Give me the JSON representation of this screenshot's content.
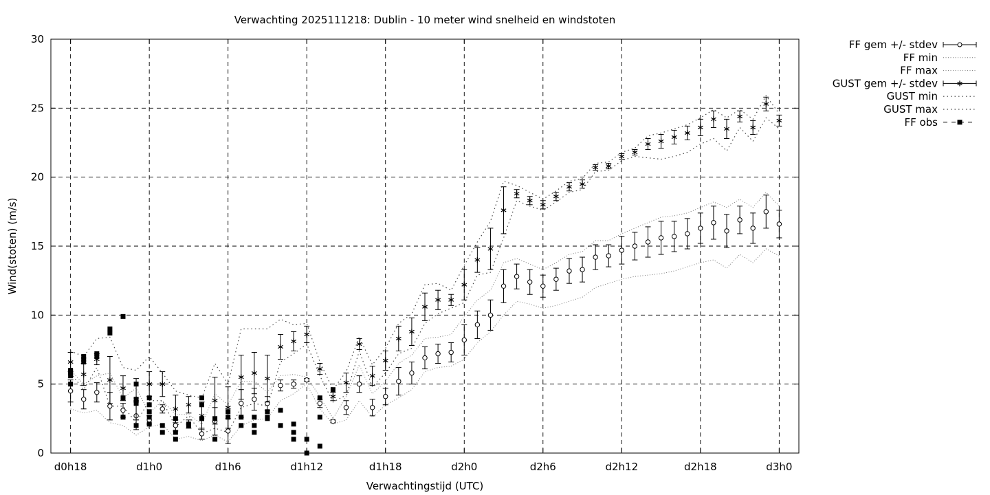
{
  "chart_data": {
    "type": "line",
    "title": "Verwachting 2025111218: Dublin - 10 meter wind snelheid en windstoten",
    "xlabel": "Verwachtingstijd (UTC)",
    "ylabel": "Wind(stoten) (m/s)",
    "ylim": [
      0,
      30
    ],
    "y_ticks": [
      0,
      5,
      10,
      15,
      20,
      25,
      30
    ],
    "xlim": [
      -1.5,
      55.5
    ],
    "x_ticks": [
      {
        "x": 0,
        "label": "d0h18"
      },
      {
        "x": 6,
        "label": "d1h0"
      },
      {
        "x": 12,
        "label": "d1h6"
      },
      {
        "x": 18,
        "label": "d1h12"
      },
      {
        "x": 24,
        "label": "d1h18"
      },
      {
        "x": 30,
        "label": "d2h0"
      },
      {
        "x": 36,
        "label": "d2h6"
      },
      {
        "x": 42,
        "label": "d2h12"
      },
      {
        "x": 48,
        "label": "d2h18"
      },
      {
        "x": 54,
        "label": "d3h0"
      }
    ],
    "grid": true,
    "legend_position": "outside-right",
    "legend": [
      "FF gem +/- stdev",
      "FF min",
      "FF max",
      "GUST gem +/- stdev",
      "GUST min",
      "GUST max",
      "FF obs"
    ],
    "series": [
      {
        "name": "FF gem +/- stdev",
        "marker": "circle",
        "x": [
          0,
          1,
          2,
          3,
          4,
          5,
          6,
          7,
          8,
          9,
          10,
          11,
          12,
          13,
          14,
          15,
          16,
          17,
          18,
          19,
          20,
          21,
          22,
          23,
          24,
          25,
          26,
          27,
          28,
          29,
          30,
          31,
          32,
          33,
          34,
          35,
          36,
          37,
          38,
          39,
          40,
          41,
          42,
          43,
          44,
          45,
          46,
          47,
          48,
          49,
          50,
          51,
          52,
          53,
          54
        ],
        "mean": [
          4.5,
          3.9,
          4.4,
          3.4,
          3.1,
          2.7,
          2.4,
          3.2,
          2.0,
          2.1,
          1.4,
          2.3,
          1.6,
          3.6,
          3.9,
          3.6,
          4.9,
          5.0,
          5.3,
          3.6,
          2.3,
          3.3,
          5.0,
          3.3,
          4.1,
          5.2,
          5.8,
          6.9,
          7.2,
          7.3,
          8.2,
          9.3,
          10.0,
          12.1,
          12.8,
          12.4,
          12.1,
          12.6,
          13.2,
          13.3,
          14.2,
          14.3,
          14.7,
          15.0,
          15.3,
          15.6,
          15.7,
          15.9,
          16.3,
          16.7,
          16.1,
          16.9,
          16.3,
          17.5,
          16.6
        ],
        "stdev": [
          0.8,
          0.7,
          0.7,
          1.0,
          0.5,
          1.0,
          0.3,
          0.3,
          0.4,
          0.3,
          0.4,
          1.0,
          0.9,
          1.0,
          0.8,
          0.5,
          0.4,
          0.3,
          0.1,
          0.3,
          0.1,
          0.5,
          0.6,
          0.6,
          0.6,
          1.0,
          0.8,
          0.8,
          0.7,
          0.7,
          1.1,
          1.0,
          1.1,
          1.2,
          0.9,
          0.9,
          0.8,
          0.8,
          0.9,
          0.9,
          0.9,
          0.8,
          1.0,
          1.0,
          1.1,
          1.2,
          1.1,
          1.1,
          1.1,
          1.2,
          1.2,
          1.0,
          1.1,
          1.2,
          1.0
        ]
      },
      {
        "name": "GUST gem +/- stdev",
        "marker": "star",
        "x": [
          0,
          1,
          2,
          3,
          4,
          5,
          6,
          7,
          8,
          9,
          10,
          11,
          12,
          13,
          14,
          15,
          16,
          17,
          18,
          19,
          20,
          21,
          22,
          23,
          24,
          25,
          26,
          27,
          28,
          29,
          30,
          31,
          32,
          33,
          34,
          35,
          36,
          37,
          38,
          39,
          40,
          41,
          42,
          43,
          44,
          45,
          46,
          47,
          48,
          49,
          50,
          51,
          52,
          53,
          54
        ],
        "mean": [
          6.6,
          5.7,
          6.8,
          5.3,
          4.7,
          3.9,
          5.0,
          5.0,
          3.2,
          3.5,
          2.7,
          3.8,
          3.3,
          5.5,
          5.8,
          5.4,
          7.7,
          8.1,
          8.6,
          6.1,
          4.1,
          5.1,
          7.9,
          5.6,
          6.7,
          8.3,
          8.8,
          10.6,
          11.1,
          11.1,
          12.2,
          14.0,
          14.8,
          17.6,
          18.8,
          18.3,
          18.0,
          18.6,
          19.3,
          19.5,
          20.7,
          20.8,
          21.5,
          21.8,
          22.4,
          22.6,
          22.9,
          23.2,
          23.6,
          24.2,
          23.5,
          24.4,
          23.6,
          25.3,
          24.1
        ],
        "stdev": [
          0.7,
          0.8,
          0.4,
          1.7,
          0.9,
          1.5,
          0.9,
          0.9,
          1.0,
          0.6,
          1.0,
          1.7,
          1.5,
          1.6,
          1.5,
          1.7,
          0.9,
          0.7,
          0.6,
          0.4,
          0.3,
          0.7,
          0.4,
          0.7,
          0.7,
          0.9,
          1.0,
          1.0,
          0.7,
          0.4,
          1.1,
          0.9,
          1.5,
          1.7,
          0.3,
          0.3,
          0.3,
          0.3,
          0.3,
          0.3,
          0.2,
          0.2,
          0.2,
          0.2,
          0.4,
          0.5,
          0.5,
          0.5,
          0.6,
          0.6,
          0.7,
          0.4,
          0.5,
          0.5,
          0.4
        ]
      },
      {
        "name": "FF min",
        "style": "dotted",
        "x": [
          0,
          1,
          2,
          3,
          4,
          5,
          6,
          7,
          8,
          9,
          10,
          11,
          12,
          13,
          14,
          15,
          16,
          17,
          18,
          19,
          20,
          21,
          22,
          23,
          24,
          25,
          26,
          27,
          28,
          29,
          30,
          31,
          32,
          33,
          34,
          35,
          36,
          37,
          38,
          39,
          40,
          41,
          42,
          43,
          44,
          45,
          46,
          47,
          48,
          49,
          50,
          51,
          52,
          53,
          54
        ],
        "values": [
          3.2,
          2.9,
          3.1,
          2.2,
          2.0,
          1.3,
          1.9,
          2.1,
          1.0,
          1.2,
          0.9,
          1.3,
          0.8,
          2.0,
          2.4,
          2.5,
          3.8,
          4.3,
          5.0,
          3.2,
          2.1,
          2.4,
          3.8,
          2.6,
          3.5,
          4.0,
          4.6,
          5.9,
          6.2,
          6.3,
          6.8,
          8.0,
          8.8,
          10.0,
          11.0,
          10.8,
          10.5,
          10.7,
          11.0,
          11.3,
          12.0,
          12.3,
          12.6,
          12.8,
          12.9,
          13.0,
          13.2,
          13.5,
          13.8,
          14.0,
          13.4,
          14.4,
          13.8,
          14.8,
          14.3
        ]
      },
      {
        "name": "FF max",
        "style": "dotted",
        "x": [
          0,
          1,
          2,
          3,
          4,
          5,
          6,
          7,
          8,
          9,
          10,
          11,
          12,
          13,
          14,
          15,
          16,
          17,
          18,
          19,
          20,
          21,
          22,
          23,
          24,
          25,
          26,
          27,
          28,
          29,
          30,
          31,
          32,
          33,
          34,
          35,
          36,
          37,
          38,
          39,
          40,
          41,
          42,
          43,
          44,
          45,
          46,
          47,
          48,
          49,
          50,
          51,
          52,
          53,
          54
        ],
        "values": [
          6.0,
          5.0,
          5.6,
          5.8,
          4.0,
          4.7,
          2.9,
          3.8,
          2.8,
          2.8,
          2.1,
          4.3,
          3.5,
          5.2,
          5.2,
          4.4,
          5.6,
          5.7,
          5.5,
          4.1,
          2.5,
          4.1,
          6.4,
          4.3,
          5.2,
          6.5,
          7.1,
          8.3,
          8.4,
          8.6,
          9.9,
          11.1,
          11.8,
          13.8,
          14.1,
          13.7,
          13.3,
          13.8,
          14.4,
          14.6,
          15.4,
          15.4,
          15.9,
          16.3,
          16.7,
          17.1,
          17.2,
          17.4,
          17.8,
          18.2,
          17.8,
          18.4,
          17.8,
          18.9,
          17.9
        ]
      },
      {
        "name": "GUST min",
        "style": "dotted",
        "x": [
          0,
          1,
          2,
          3,
          4,
          5,
          6,
          7,
          8,
          9,
          10,
          11,
          12,
          13,
          14,
          15,
          16,
          17,
          18,
          19,
          20,
          21,
          22,
          23,
          24,
          25,
          26,
          27,
          28,
          29,
          30,
          31,
          32,
          33,
          34,
          35,
          36,
          37,
          38,
          39,
          40,
          41,
          42,
          43,
          44,
          45,
          46,
          47,
          48,
          49,
          50,
          51,
          52,
          53,
          54
        ],
        "values": [
          5.8,
          4.6,
          6.2,
          3.4,
          3.4,
          2.2,
          3.8,
          3.8,
          1.9,
          2.7,
          1.4,
          1.8,
          1.5,
          3.3,
          3.6,
          3.4,
          6.6,
          7.2,
          7.9,
          5.6,
          3.7,
          4.2,
          7.4,
          4.8,
          5.8,
          7.2,
          7.6,
          9.4,
          10.1,
          10.5,
          10.9,
          12.9,
          13.1,
          15.6,
          18.3,
          17.9,
          17.6,
          18.2,
          18.9,
          19.1,
          20.4,
          20.5,
          21.2,
          21.5,
          21.4,
          21.3,
          21.5,
          21.8,
          22.4,
          22.8,
          21.9,
          23.6,
          22.6,
          24.3,
          23.5
        ]
      },
      {
        "name": "GUST max",
        "style": "dotted",
        "x": [
          0,
          1,
          2,
          3,
          4,
          5,
          6,
          7,
          8,
          9,
          10,
          11,
          12,
          13,
          14,
          15,
          16,
          17,
          18,
          19,
          20,
          21,
          22,
          23,
          24,
          25,
          26,
          27,
          28,
          29,
          30,
          31,
          32,
          33,
          34,
          35,
          36,
          37,
          38,
          39,
          40,
          41,
          42,
          43,
          44,
          45,
          46,
          47,
          48,
          49,
          50,
          51,
          52,
          53,
          54
        ],
        "values": [
          7.4,
          7.0,
          8.3,
          8.4,
          6.2,
          6.0,
          7.0,
          5.8,
          4.5,
          4.2,
          4.0,
          6.5,
          5.0,
          9.0,
          9.0,
          9.0,
          9.7,
          9.3,
          9.4,
          6.6,
          4.6,
          5.9,
          8.4,
          6.4,
          7.6,
          9.4,
          10.1,
          12.2,
          12.3,
          11.8,
          13.6,
          15.3,
          16.8,
          19.7,
          19.4,
          18.9,
          18.4,
          19.0,
          19.7,
          19.9,
          21.0,
          21.1,
          21.8,
          22.1,
          23.0,
          23.2,
          23.5,
          23.8,
          24.3,
          24.9,
          24.3,
          24.9,
          24.2,
          25.9,
          24.6
        ]
      },
      {
        "name": "FF obs",
        "marker": "square",
        "x": [
          0,
          0,
          0,
          0,
          0,
          1,
          1,
          1,
          2,
          2,
          3,
          3,
          4,
          4,
          4,
          5,
          5,
          5,
          5,
          6,
          6,
          6,
          6,
          6,
          7,
          7,
          8,
          8,
          8,
          9,
          9,
          10,
          10,
          10,
          11,
          11,
          12,
          12,
          13,
          13,
          14,
          14,
          14,
          15,
          15,
          15,
          16,
          16,
          17,
          17,
          17,
          18,
          18,
          19,
          19,
          19,
          20
        ],
        "values": [
          5.0,
          5.6,
          5.8,
          5.9,
          6.0,
          6.6,
          6.8,
          7.0,
          7.0,
          7.2,
          8.7,
          9.0,
          9.9,
          4.0,
          2.6,
          5.0,
          3.9,
          3.6,
          2.0,
          4.0,
          3.5,
          3.0,
          2.6,
          2.1,
          2.0,
          1.5,
          2.5,
          1.5,
          1.0,
          2.1,
          2.0,
          4.0,
          3.5,
          2.5,
          1.0,
          2.5,
          3.0,
          2.6,
          2.6,
          2.0,
          2.6,
          2.0,
          1.5,
          3.0,
          2.6,
          2.5,
          3.1,
          2.0,
          2.1,
          1.5,
          1.0,
          1.0,
          0.0,
          4.0,
          2.6,
          0.5,
          4.6
        ]
      }
    ]
  }
}
